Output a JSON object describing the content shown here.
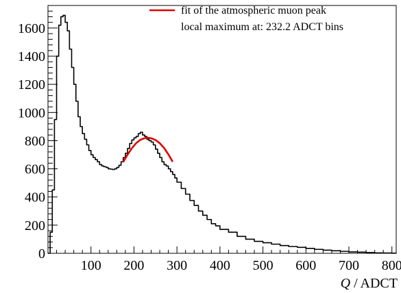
{
  "chart_data": {
    "type": "line",
    "title": "",
    "xlabel_var": "Q",
    "xlabel_unit": " / ADCT",
    "ylabel": "",
    "xlim": [
      0,
      810
    ],
    "ylim": [
      0,
      1760
    ],
    "x_ticks": [
      100,
      200,
      300,
      400,
      500,
      600,
      700,
      800
    ],
    "y_ticks": [
      0,
      200,
      400,
      600,
      800,
      1000,
      1200,
      1400,
      1600
    ],
    "legend_position": "top-right",
    "grid": false,
    "series": [
      {
        "name": "",
        "style": "step-histogram",
        "color": "#000000",
        "x": [
          0,
          5,
          10,
          15,
          20,
          25,
          30,
          35,
          40,
          45,
          50,
          55,
          60,
          65,
          70,
          75,
          80,
          85,
          90,
          95,
          100,
          105,
          110,
          115,
          120,
          125,
          130,
          135,
          140,
          145,
          150,
          155,
          160,
          165,
          170,
          175,
          180,
          185,
          190,
          195,
          200,
          205,
          210,
          215,
          220,
          225,
          230,
          235,
          240,
          245,
          250,
          255,
          260,
          265,
          270,
          275,
          280,
          285,
          290,
          295,
          300,
          310,
          320,
          330,
          340,
          350,
          360,
          370,
          380,
          390,
          400,
          420,
          440,
          460,
          480,
          500,
          520,
          540,
          560,
          580,
          600,
          620,
          640,
          660,
          680,
          700,
          720,
          740,
          760,
          780,
          800,
          810
        ],
        "y": [
          0,
          150,
          450,
          950,
          1400,
          1620,
          1680,
          1690,
          1640,
          1580,
          1450,
          1320,
          1200,
          1080,
          970,
          900,
          850,
          810,
          770,
          730,
          700,
          680,
          665,
          650,
          630,
          620,
          615,
          610,
          600,
          598,
          595,
          600,
          610,
          625,
          650,
          680,
          710,
          745,
          780,
          805,
          820,
          830,
          850,
          860,
          840,
          830,
          810,
          800,
          790,
          770,
          740,
          710,
          680,
          650,
          630,
          620,
          600,
          580,
          560,
          535,
          505,
          460,
          420,
          375,
          340,
          300,
          270,
          240,
          210,
          195,
          170,
          150,
          120,
          100,
          85,
          75,
          65,
          55,
          48,
          42,
          35,
          28,
          22,
          18,
          14,
          10,
          8,
          5,
          3,
          2,
          1,
          0
        ]
      },
      {
        "name": "fit of the atmospheric muon peak",
        "style": "line",
        "color": "#e00000",
        "x": [
          175,
          185,
          195,
          205,
          215,
          225,
          232.2,
          240,
          250,
          260,
          270,
          280,
          290
        ],
        "y": [
          648,
          700,
          746,
          782,
          806,
          818,
          820,
          817,
          805,
          782,
          748,
          703,
          650
        ]
      }
    ],
    "legend": [
      {
        "label": "fit of the atmospheric muon peak",
        "color": "#e00000",
        "marker": "line"
      },
      {
        "label": "local maximum at: 232.2 ADCT bins",
        "color": "",
        "marker": "none"
      }
    ]
  }
}
